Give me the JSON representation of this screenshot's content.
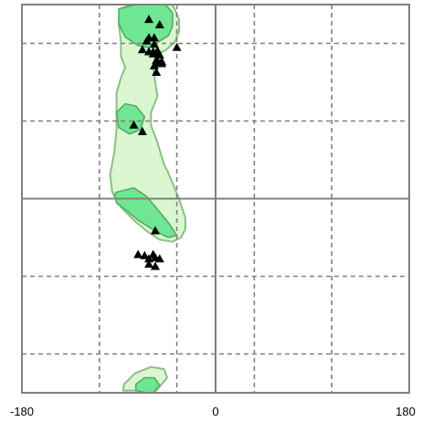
{
  "chart_data": {
    "type": "scatter",
    "title": "",
    "xlabel": "",
    "ylabel": "",
    "xlim": [
      -180,
      180
    ],
    "ylim": [
      -180,
      180
    ],
    "xtick_labels": [
      {
        "value": -180,
        "text": "-180"
      },
      {
        "value": 0,
        "text": "0"
      },
      {
        "value": 180,
        "text": "180"
      }
    ],
    "grid": {
      "solid": {
        "x": [
          0
        ],
        "y": [
          0
        ]
      },
      "dashed": {
        "x": [
          -108,
          -36,
          36,
          108
        ],
        "y": [
          -144,
          -72,
          72,
          144
        ]
      }
    },
    "regions": [
      {
        "name": "allowed",
        "fill": "#d9f7d0",
        "stroke": "#8cbf86",
        "points": [
          [
            -68,
            -178
          ],
          [
            -55,
            -178
          ],
          [
            -45,
            -166
          ],
          [
            -48,
            -158
          ],
          [
            -60,
            -156
          ],
          [
            -75,
            -162
          ],
          [
            -85,
            -172
          ],
          [
            -86,
            -178
          ]
        ]
      },
      {
        "name": "allowed",
        "fill": "#d9f7d0",
        "stroke": "#8cbf86",
        "points": [
          [
            -75,
            182
          ],
          [
            -70,
            182
          ],
          [
            -65,
            182
          ],
          [
            -60,
            182
          ],
          [
            -50,
            182
          ],
          [
            -42,
            182
          ],
          [
            -38,
            176
          ],
          [
            -34,
            166
          ],
          [
            -34,
            155
          ],
          [
            -38,
            145
          ],
          [
            -46,
            138
          ],
          [
            -56,
            133
          ],
          [
            -58,
            120
          ],
          [
            -54,
            95
          ],
          [
            -60,
            80
          ],
          [
            -60,
            68
          ],
          [
            -54,
            52
          ],
          [
            -48,
            32
          ],
          [
            -44,
            24
          ],
          [
            -34,
            0
          ],
          [
            -28,
            -18
          ],
          [
            -28,
            -28
          ],
          [
            -32,
            -36
          ],
          [
            -40,
            -40
          ],
          [
            -52,
            -38
          ],
          [
            -64,
            -30
          ],
          [
            -76,
            -20
          ],
          [
            -88,
            -8
          ],
          [
            -96,
            6
          ],
          [
            -98,
            22
          ],
          [
            -94,
            44
          ],
          [
            -92,
            64
          ],
          [
            -92,
            82
          ],
          [
            -92,
            98
          ],
          [
            -88,
            112
          ],
          [
            -84,
            122
          ],
          [
            -88,
            132
          ],
          [
            -88,
            146
          ],
          [
            -90,
            162
          ],
          [
            -88,
            176
          ]
        ]
      }
    ],
    "favoured_regions": [
      {
        "name": "core",
        "fill": "#72e895",
        "stroke": "#5aa86a",
        "points": [
          [
            -64,
            -180
          ],
          [
            -58,
            -180
          ],
          [
            -52,
            -173
          ],
          [
            -57,
            -166
          ],
          [
            -66,
            -166
          ],
          [
            -74,
            -172
          ],
          [
            -74,
            -178
          ]
        ]
      },
      {
        "name": "core",
        "fill": "#72e895",
        "stroke": "#5aa86a",
        "points": [
          [
            -90,
            176
          ],
          [
            -66,
            182
          ],
          [
            -48,
            182
          ],
          [
            -40,
            172
          ],
          [
            -40,
            160
          ],
          [
            -44,
            151
          ],
          [
            -54,
            145
          ],
          [
            -62,
            140
          ],
          [
            -72,
            142
          ],
          [
            -84,
            150
          ],
          [
            -90,
            162
          ]
        ]
      },
      {
        "name": "core",
        "fill": "#72e895",
        "stroke": "#5aa86a",
        "points": [
          [
            -92,
            80
          ],
          [
            -84,
            88
          ],
          [
            -74,
            86
          ],
          [
            -66,
            76
          ],
          [
            -70,
            64
          ],
          [
            -80,
            60
          ],
          [
            -90,
            66
          ]
        ]
      },
      {
        "name": "core",
        "fill": "#72e895",
        "stroke": "#5aa86a",
        "points": [
          [
            -92,
            6
          ],
          [
            -76,
            10
          ],
          [
            -64,
            2
          ],
          [
            -54,
            -10
          ],
          [
            -44,
            -22
          ],
          [
            -36,
            -34
          ],
          [
            -44,
            -36
          ],
          [
            -56,
            -30
          ],
          [
            -72,
            -20
          ],
          [
            -84,
            -10
          ],
          [
            -92,
            -4
          ],
          [
            -94,
            4
          ]
        ]
      }
    ],
    "series": [
      {
        "marker": "triangle",
        "color": "#000000",
        "points": [
          [
            -62,
            166
          ],
          [
            -52,
            161
          ],
          [
            -62,
            149
          ],
          [
            -57,
            149
          ],
          [
            -64,
            146
          ],
          [
            -57,
            143
          ],
          [
            -62,
            136
          ],
          [
            -36,
            140
          ],
          [
            -68,
            138
          ],
          [
            -54,
            137
          ],
          [
            -54,
            135
          ],
          [
            -58,
            136
          ],
          [
            -52,
            133
          ],
          [
            -58,
            134
          ],
          [
            -54,
            127
          ],
          [
            -55,
            128
          ],
          [
            -52,
            125
          ],
          [
            -57,
            123
          ],
          [
            -50,
            127
          ],
          [
            -50,
            125
          ],
          [
            -55,
            117
          ],
          [
            -76,
            68
          ],
          [
            -68,
            62
          ],
          [
            -56,
            -30
          ],
          [
            -58,
            -52
          ],
          [
            -72,
            -52
          ],
          [
            -66,
            -53
          ],
          [
            -56,
            -55
          ],
          [
            -62,
            -56
          ],
          [
            -52,
            -56
          ],
          [
            -62,
            -61
          ],
          [
            -56,
            -63
          ]
        ]
      }
    ]
  }
}
